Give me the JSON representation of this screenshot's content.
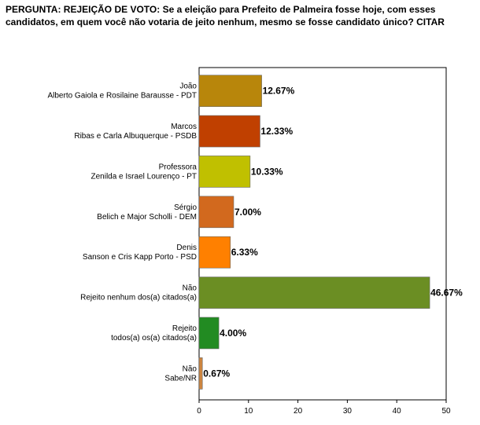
{
  "chart_data": {
    "type": "bar",
    "orientation": "horizontal",
    "title": "PERGUNTA: REJEIÇÃO DE VOTO: Se a eleição para Prefeito de Palmeira fosse hoje, com esses candidatos, em quem você não votaria de jeito nenhum, mesmo se fosse candidato único? CITAR",
    "categories": [
      [
        "João",
        "Alberto Gaiola e Rosilaine Barausse - PDT"
      ],
      [
        "Marcos",
        "Ribas e Carla Albuquerque - PSDB"
      ],
      [
        "Professora",
        "Zenilda e Israel Lourenço - PT"
      ],
      [
        "Sérgio",
        "Belich e Major Scholli - DEM"
      ],
      [
        "Denis",
        "Sanson e Cris Kapp Porto - PSD"
      ],
      [
        "Não",
        "Rejeito nenhum dos(a) citados(a)"
      ],
      [
        "Rejeito",
        "todos(a) os(a) citados(a)"
      ],
      [
        "Não",
        "Sabe/NR"
      ]
    ],
    "values": [
      12.67,
      12.33,
      10.33,
      7.0,
      6.33,
      46.67,
      4.0,
      0.67
    ],
    "value_labels": [
      "12.67%",
      "12.33%",
      "10.33%",
      "7.00%",
      "6.33%",
      "46.67%",
      "4.00%",
      "0.67%"
    ],
    "colors": [
      "#b8860b",
      "#c04000",
      "#c0c000",
      "#d2691e",
      "#ff8000",
      "#6b8e23",
      "#228b22",
      "#cd853f"
    ],
    "xlim": [
      0,
      50
    ],
    "xticks": [
      0,
      10,
      20,
      30,
      40,
      50
    ],
    "grid": false,
    "legend": "none"
  }
}
